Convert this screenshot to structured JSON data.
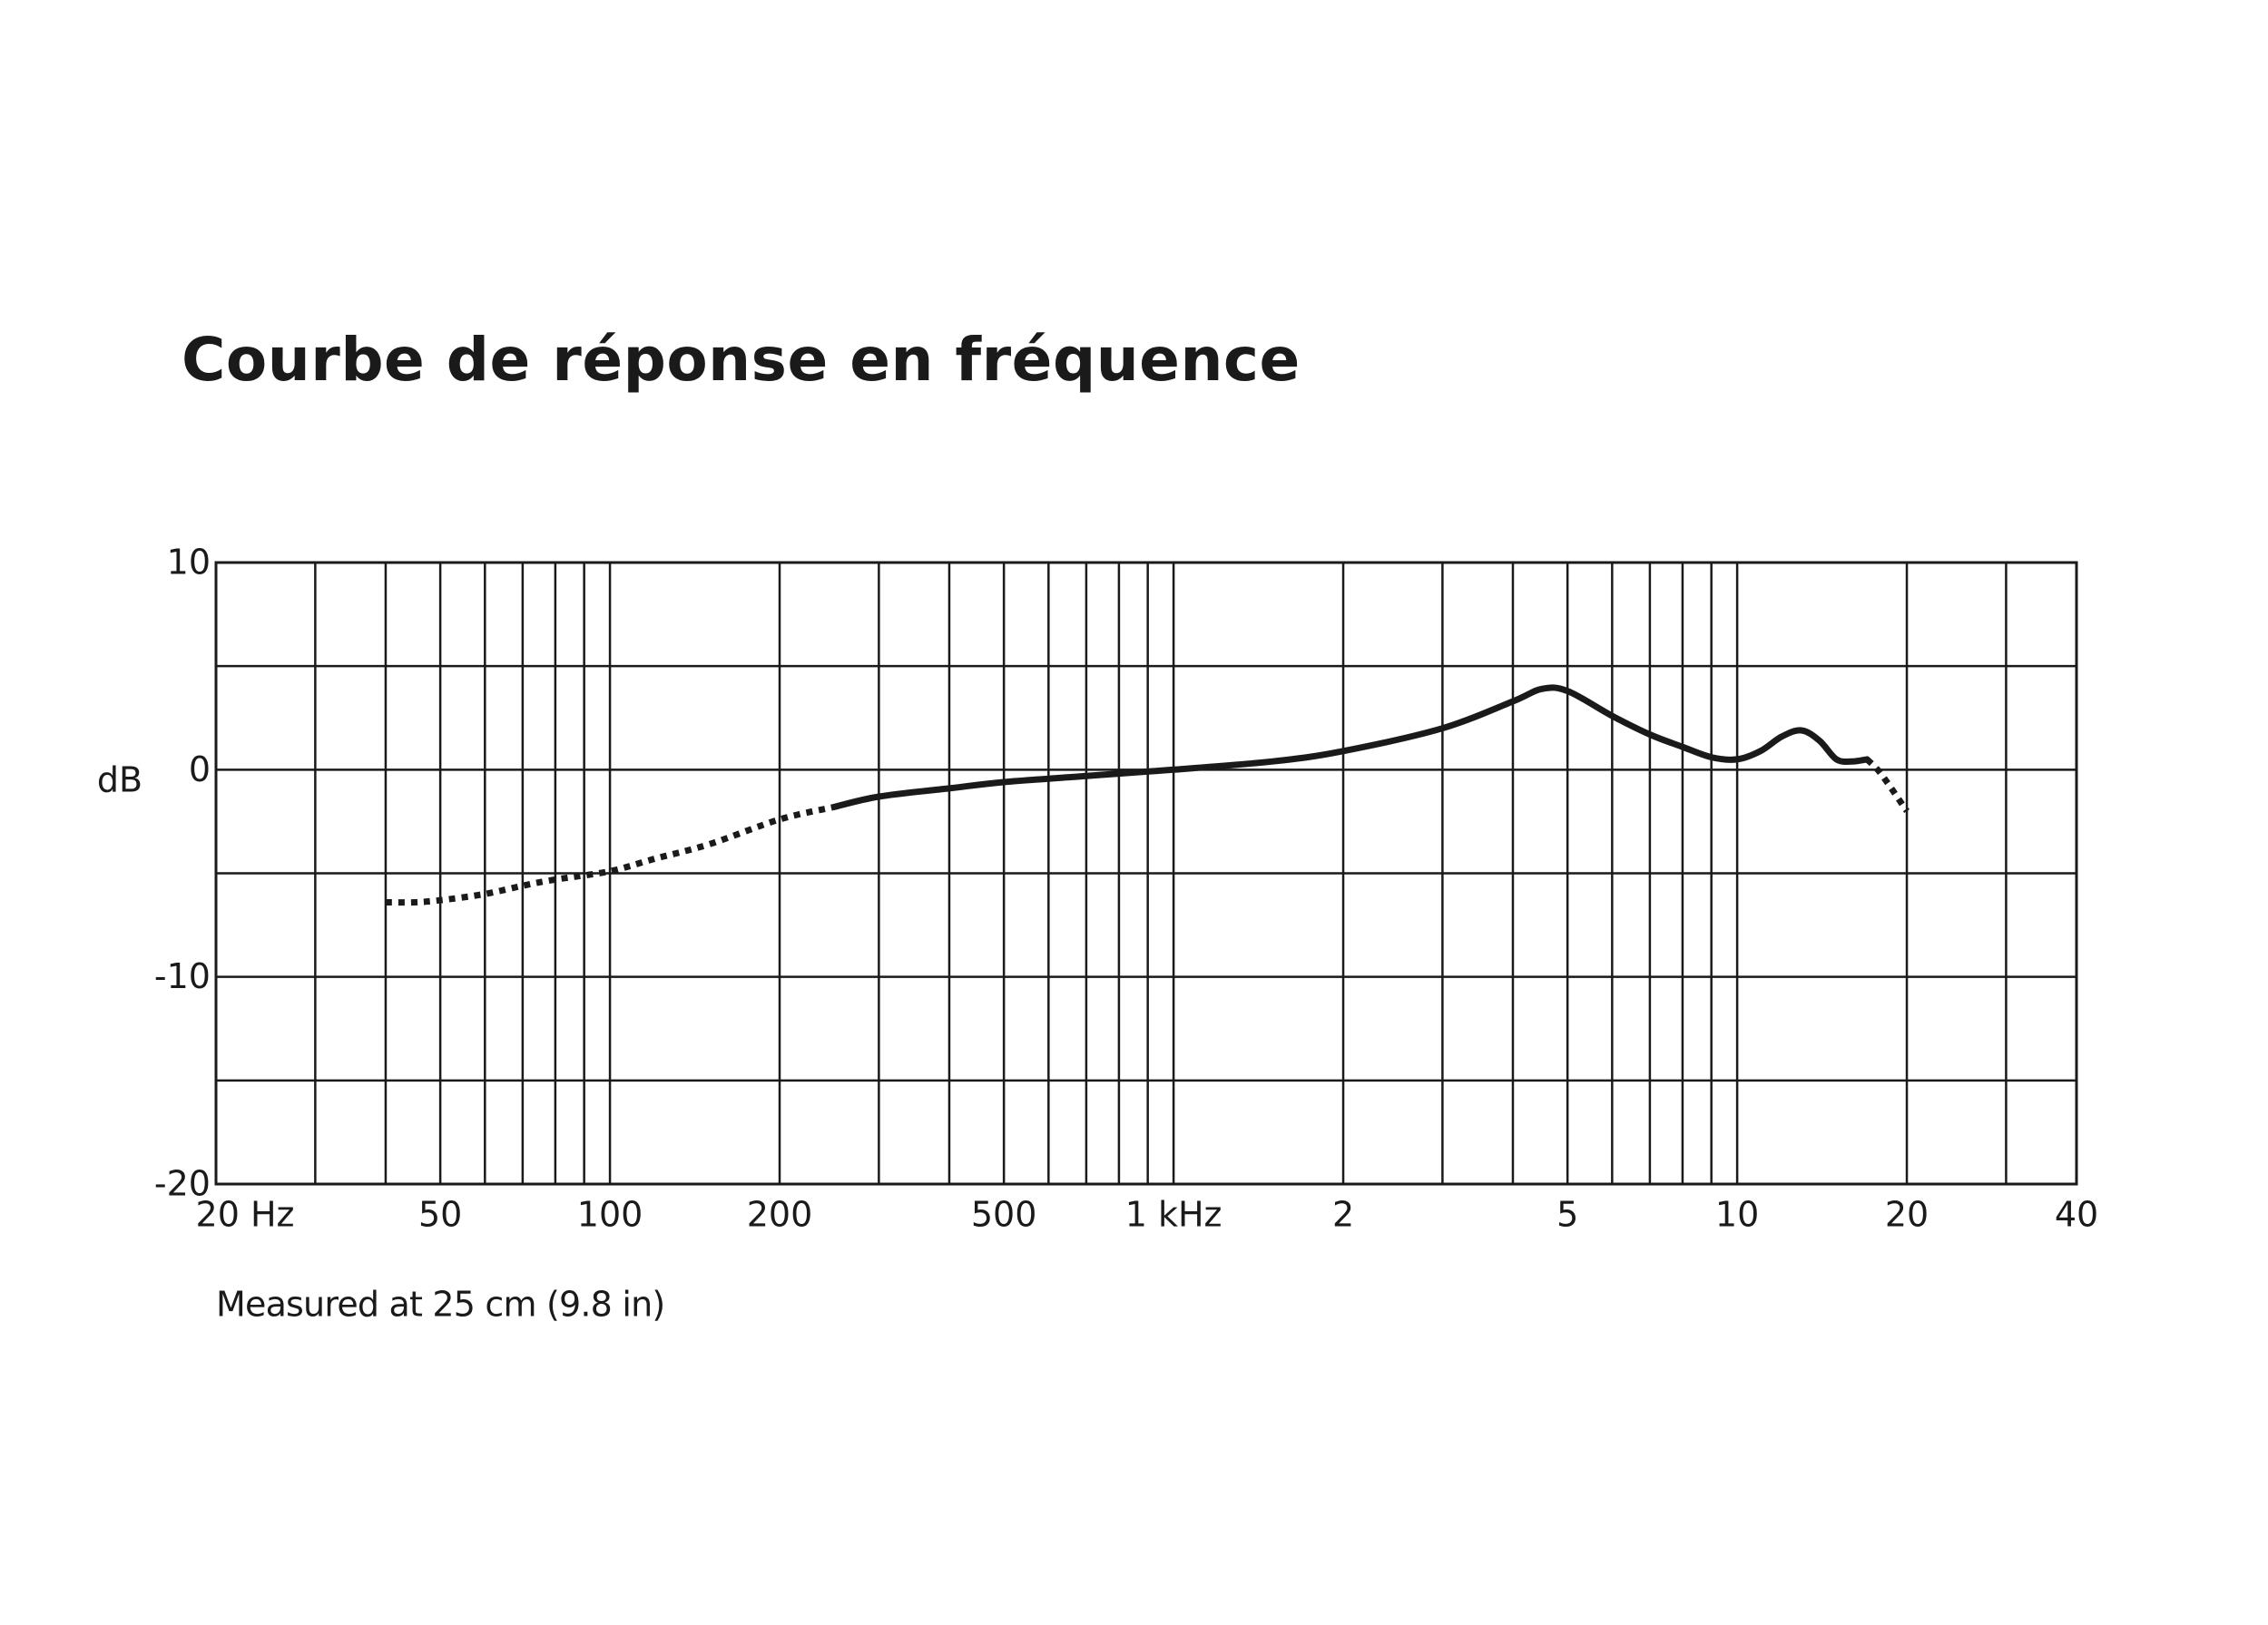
{
  "chart_data": {
    "type": "line",
    "title": "Courbe de réponse en fréquence",
    "xlabel": "",
    "ylabel": "dB",
    "x_scale": "log",
    "xlim": [
      20,
      40000
    ],
    "ylim": [
      -20,
      10
    ],
    "grid": true,
    "x_ticks": [
      {
        "value": 20,
        "label": "20 Hz"
      },
      {
        "value": 50,
        "label": "50"
      },
      {
        "value": 100,
        "label": "100"
      },
      {
        "value": 200,
        "label": "200"
      },
      {
        "value": 500,
        "label": "500"
      },
      {
        "value": 1000,
        "label": "1 kHz"
      },
      {
        "value": 2000,
        "label": "2"
      },
      {
        "value": 5000,
        "label": "5"
      },
      {
        "value": 10000,
        "label": "10"
      },
      {
        "value": 20000,
        "label": "20"
      },
      {
        "value": 40000,
        "label": "40"
      }
    ],
    "y_ticks": [
      {
        "value": 10,
        "label": "10"
      },
      {
        "value": 0,
        "label": "0"
      },
      {
        "value": -10,
        "label": "-10"
      },
      {
        "value": -20,
        "label": "-20"
      }
    ],
    "series": [
      {
        "style": "dotted",
        "x": [
          40,
          45,
          50,
          60,
          70,
          80,
          100,
          120,
          150,
          200,
          250
        ],
        "y": [
          -6.4,
          -6.4,
          -6.3,
          -6.0,
          -5.6,
          -5.3,
          -4.9,
          -4.3,
          -3.6,
          -2.4,
          -1.8
        ]
      },
      {
        "style": "solid",
        "x": [
          250,
          300,
          400,
          500,
          700,
          1000,
          1500,
          2000,
          3000,
          4000,
          4500,
          5000,
          6000,
          7000,
          8000,
          9000,
          10000,
          11000,
          12000,
          13000,
          14000,
          15000,
          16000,
          17000
        ],
        "y": [
          -1.8,
          -1.3,
          -0.9,
          -0.6,
          -0.3,
          0.0,
          0.4,
          0.9,
          2.0,
          3.3,
          3.9,
          3.8,
          2.6,
          1.7,
          1.1,
          0.6,
          0.5,
          0.9,
          1.6,
          1.9,
          1.4,
          0.5,
          0.4,
          0.5
        ]
      },
      {
        "style": "dotted",
        "x": [
          17000,
          18000,
          20000
        ],
        "y": [
          0.5,
          -0.2,
          -2.0
        ]
      }
    ],
    "note": "Measured at 25 cm (9.8 in)"
  },
  "colors": {
    "line": "#1a1a1a",
    "grid": "#1a1a1a",
    "background": "#ffffff"
  }
}
